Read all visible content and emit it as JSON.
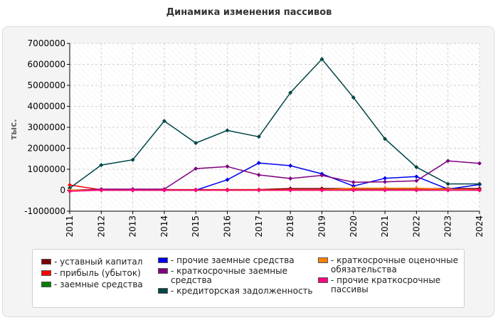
{
  "chart_data": {
    "type": "line",
    "title": "Динамика изменения пассивов",
    "ylabel": "тыс.",
    "xlabel": "",
    "ylim": [
      -1000000,
      7000000
    ],
    "yticks": [
      -1000000,
      0,
      1000000,
      2000000,
      3000000,
      4000000,
      5000000,
      6000000,
      7000000
    ],
    "x": [
      "2011",
      "2012",
      "2013",
      "2014",
      "2015",
      "2016",
      "2017",
      "2018",
      "2019",
      "2020",
      "2021",
      "2022",
      "2023",
      "2024"
    ],
    "grid": true,
    "legend_position": "bottom",
    "series": [
      {
        "name": "- уставный капитал",
        "color": "#7a0000",
        "values": [
          0,
          30000,
          30000,
          30000,
          30000,
          30000,
          30000,
          80000,
          80000,
          80000,
          80000,
          80000,
          80000,
          80000
        ]
      },
      {
        "name": "- прибыль (убыток)",
        "color": "#ff0000",
        "values": [
          250000,
          20000,
          20000,
          20000,
          20000,
          20000,
          20000,
          20000,
          20000,
          20000,
          20000,
          20000,
          20000,
          20000
        ]
      },
      {
        "name": "- заемные средства",
        "color": "#008000",
        "values": [
          0,
          0,
          0,
          0,
          0,
          0,
          0,
          0,
          0,
          0,
          0,
          0,
          0,
          0
        ]
      },
      {
        "name": "- прочие заемные средства",
        "color": "#0000ee",
        "values": [
          0,
          0,
          0,
          0,
          0,
          500000,
          1300000,
          1170000,
          780000,
          200000,
          570000,
          650000,
          50000,
          270000
        ]
      },
      {
        "name": "- краткосрочные заемные средства",
        "color": "#800080",
        "values": [
          0,
          50000,
          50000,
          50000,
          1030000,
          1130000,
          730000,
          560000,
          710000,
          380000,
          400000,
          450000,
          1400000,
          1280000
        ]
      },
      {
        "name": "- кредиторская задолженность",
        "color": "#004545",
        "values": [
          100000,
          1200000,
          1450000,
          3300000,
          2250000,
          2850000,
          2550000,
          4650000,
          6250000,
          4420000,
          2450000,
          1100000,
          300000,
          300000
        ]
      },
      {
        "name": "- краткосрочные оценочные обязательства",
        "color": "#ff8000",
        "values": [
          0,
          0,
          0,
          0,
          0,
          0,
          0,
          0,
          0,
          100000,
          100000,
          100000,
          50000,
          0
        ]
      },
      {
        "name": "- прочие краткосрочные пассивы",
        "color": "#ff0080",
        "values": [
          -50000,
          0,
          0,
          0,
          0,
          0,
          0,
          0,
          0,
          0,
          0,
          0,
          0,
          0
        ]
      }
    ]
  },
  "legend": {
    "items": [
      {
        "series": 0,
        "lines": [
          "- уставный капитал"
        ]
      },
      {
        "series": 1,
        "lines": [
          "- прибыль (убыток)"
        ]
      },
      {
        "series": 2,
        "lines": [
          "- заемные средства"
        ]
      },
      {
        "series": 3,
        "lines": [
          "- прочие заемные средства"
        ]
      },
      {
        "series": 4,
        "lines": [
          "- краткосрочные заемные",
          "средства"
        ]
      },
      {
        "series": 5,
        "lines": [
          "- кредиторская задолженность"
        ]
      },
      {
        "series": 6,
        "lines": [
          "- краткосрочные оценочные",
          "обязательства"
        ]
      },
      {
        "series": 7,
        "lines": [
          "- прочие краткосрочные",
          "пассивы"
        ]
      }
    ]
  }
}
